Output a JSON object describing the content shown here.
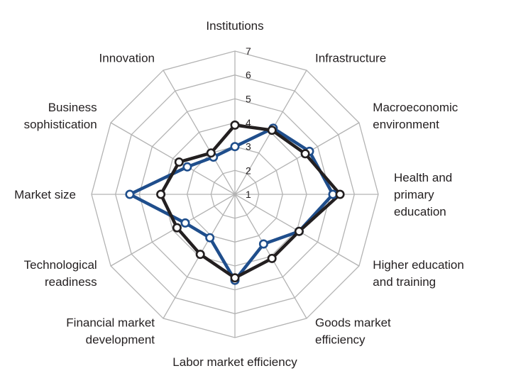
{
  "chart_data": {
    "type": "radar",
    "title": "",
    "axes": [
      "Institutions",
      "Infrastructure",
      "Macroeconomic environment",
      "Health and primary education",
      "Higher education and training",
      "Goods market efficiency",
      "Labor market efficiency",
      "Financial market development",
      "Technological readiness",
      "Market size",
      "Business sophistication",
      "Innovation"
    ],
    "axis_label_lines": [
      [
        "Institutions"
      ],
      [
        "Infrastructure"
      ],
      [
        "Macroeconomic",
        "environment"
      ],
      [
        "Health and",
        "primary",
        "education"
      ],
      [
        "Higher education",
        "and training"
      ],
      [
        "Goods market",
        "efficiency"
      ],
      [
        "Labor market efficiency"
      ],
      [
        "Financial market",
        "development"
      ],
      [
        "Technological",
        "readiness"
      ],
      [
        "Market size"
      ],
      [
        "Business",
        "sophistication"
      ],
      [
        "Innovation"
      ]
    ],
    "range": [
      1,
      7
    ],
    "ticks": [
      "1",
      "2",
      "3",
      "4",
      "5",
      "6",
      "7"
    ],
    "grid": true,
    "legend": "none",
    "series": [
      {
        "color": "#1f4e8c",
        "values": [
          3.0,
          4.2,
          4.6,
          5.1,
          4.1,
          3.4,
          4.6,
          3.1,
          3.4,
          5.4,
          3.3,
          2.8
        ]
      },
      {
        "color": "#231f20",
        "values": [
          3.9,
          4.1,
          4.4,
          5.4,
          4.1,
          4.1,
          4.5,
          3.9,
          3.8,
          4.1,
          3.7,
          3.0
        ]
      }
    ]
  }
}
